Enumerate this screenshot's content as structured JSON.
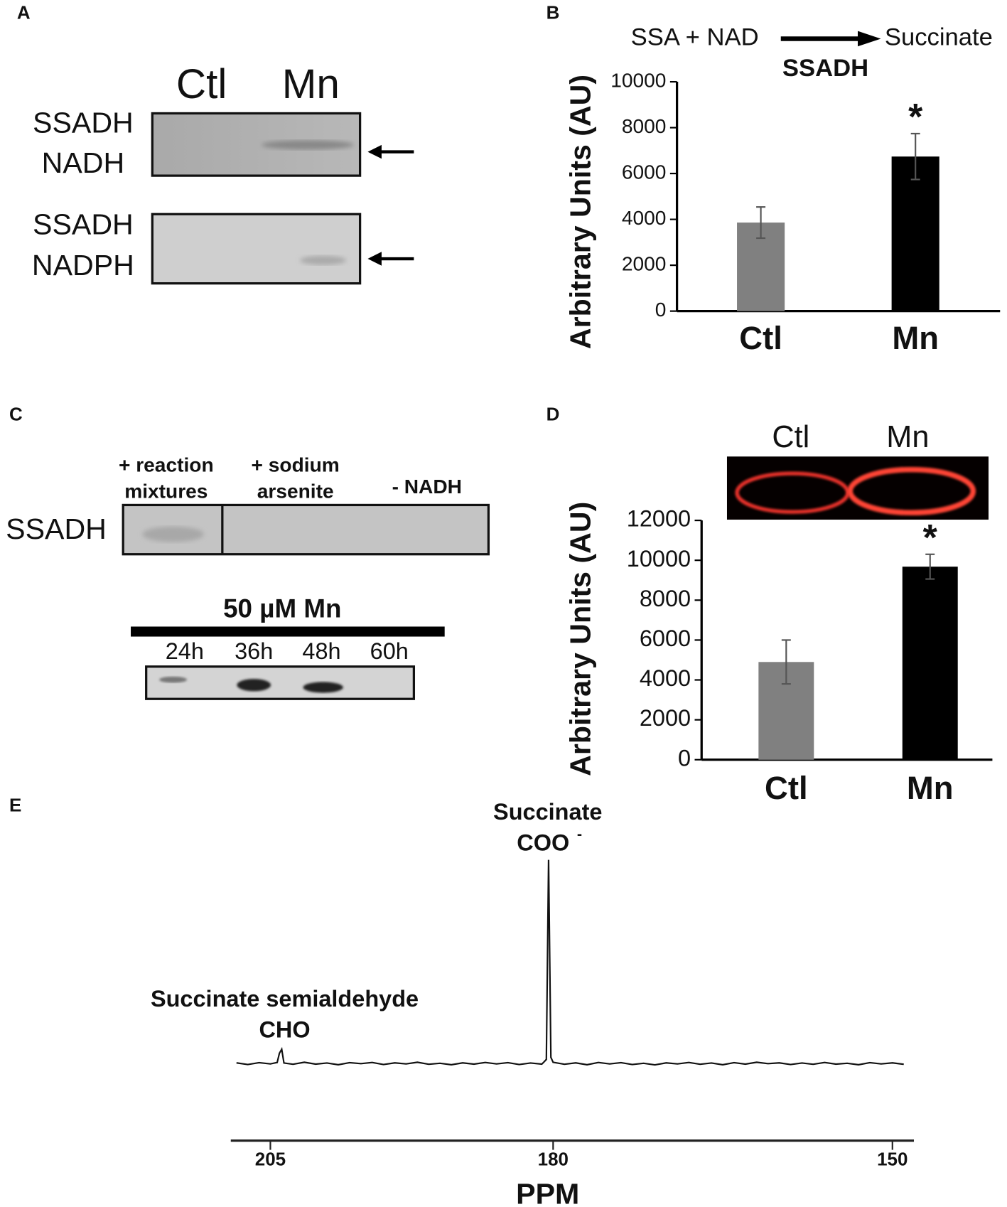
{
  "panel_labels": [
    "A",
    "B",
    "C",
    "D",
    "E"
  ],
  "blot_a": {
    "lanes": [
      "Ctl",
      "Mn"
    ],
    "rows": [
      [
        "SSADH",
        "NADH"
      ],
      [
        "SSADH",
        "NADPH"
      ]
    ]
  },
  "blot_c": {
    "conditions": [
      [
        "+ reaction",
        "mixtures"
      ],
      [
        "+ sodium",
        "arsenite"
      ],
      [
        "- NADH"
      ]
    ],
    "row_label": "SSADH",
    "treatment": "50 µM Mn",
    "times": [
      "24h",
      "36h",
      "48h",
      "60h"
    ]
  },
  "chart_data": [
    {
      "type": "bar",
      "reaction": {
        "substrate": "SSA + NAD",
        "product": "Succinate",
        "enzyme": "SSADH"
      },
      "y_label": "Arbitrary Units (AU)",
      "categories": [
        "Ctl",
        "Mn"
      ],
      "values": [
        3860,
        6740
      ],
      "errors": [
        680,
        1000
      ],
      "colors": [
        "#808080",
        "#000000"
      ],
      "ylim": [
        0,
        10000
      ],
      "yticks": [
        0,
        2000,
        4000,
        6000,
        8000,
        10000
      ],
      "annotation": "*"
    },
    {
      "type": "bar",
      "image_labels": [
        "Ctl",
        "Mn"
      ],
      "y_label": "Arbitrary Units (AU)",
      "categories": [
        "Ctl",
        "Mn"
      ],
      "values": [
        4900,
        9680
      ],
      "errors": [
        1100,
        620
      ],
      "colors": [
        "#808080",
        "#000000"
      ],
      "ylim": [
        0,
        12000
      ],
      "yticks": [
        0,
        2000,
        4000,
        6000,
        8000,
        10000,
        12000
      ],
      "annotation": "*"
    },
    {
      "type": "line",
      "x_label": "PPM",
      "peak_labels": [
        {
          "lines": [
            "Succinate",
            "COO"
          ],
          "superscript": "-"
        },
        {
          "lines": [
            "Succinate semialdehyde",
            "CHO"
          ]
        }
      ],
      "x": [
        208,
        207,
        206,
        205,
        204.4,
        204.2,
        204,
        203.8,
        203,
        202,
        201,
        200,
        199,
        198,
        197,
        196,
        195,
        194,
        193,
        192,
        191,
        190,
        189,
        188,
        187,
        186,
        185,
        184,
        183,
        182,
        181,
        180.8,
        180.6,
        180.4,
        180.2,
        180,
        179,
        178,
        177,
        176,
        175,
        174,
        173,
        172,
        171,
        170,
        169,
        168,
        167,
        166,
        165,
        164,
        163,
        162,
        161,
        160,
        159,
        158,
        157,
        156,
        155,
        154,
        153,
        152,
        151,
        150,
        149
      ],
      "values": [
        0.3,
        -0.5,
        0.4,
        -0.2,
        0.5,
        5,
        7,
        0.2,
        -0.4,
        0.6,
        -0.3,
        0.2,
        -0.6,
        0.4,
        -0.1,
        0.5,
        -0.5,
        0.3,
        -0.2,
        0.6,
        -0.4,
        0.1,
        -0.6,
        0.3,
        -0.3,
        0.5,
        -0.2,
        0.4,
        -0.5,
        0.2,
        -0.3,
        0.8,
        2,
        100,
        3,
        0.6,
        -0.4,
        0.3,
        -0.6,
        0.5,
        -0.2,
        0.4,
        -0.5,
        0.1,
        -0.7,
        0.3,
        -0.2,
        0.5,
        -0.4,
        0.2,
        -0.6,
        0.4,
        -0.3,
        0.6,
        -0.1,
        0.3,
        -0.5,
        0.2,
        -0.4,
        0.5,
        -0.3,
        0.1,
        -0.6,
        0.4,
        -0.2,
        0.3,
        -0.4
      ],
      "color": "#111111",
      "xlim": [
        208.5,
        148.1
      ],
      "xticks": [
        205,
        180,
        150
      ],
      "ylim": [
        -5,
        105
      ]
    }
  ]
}
